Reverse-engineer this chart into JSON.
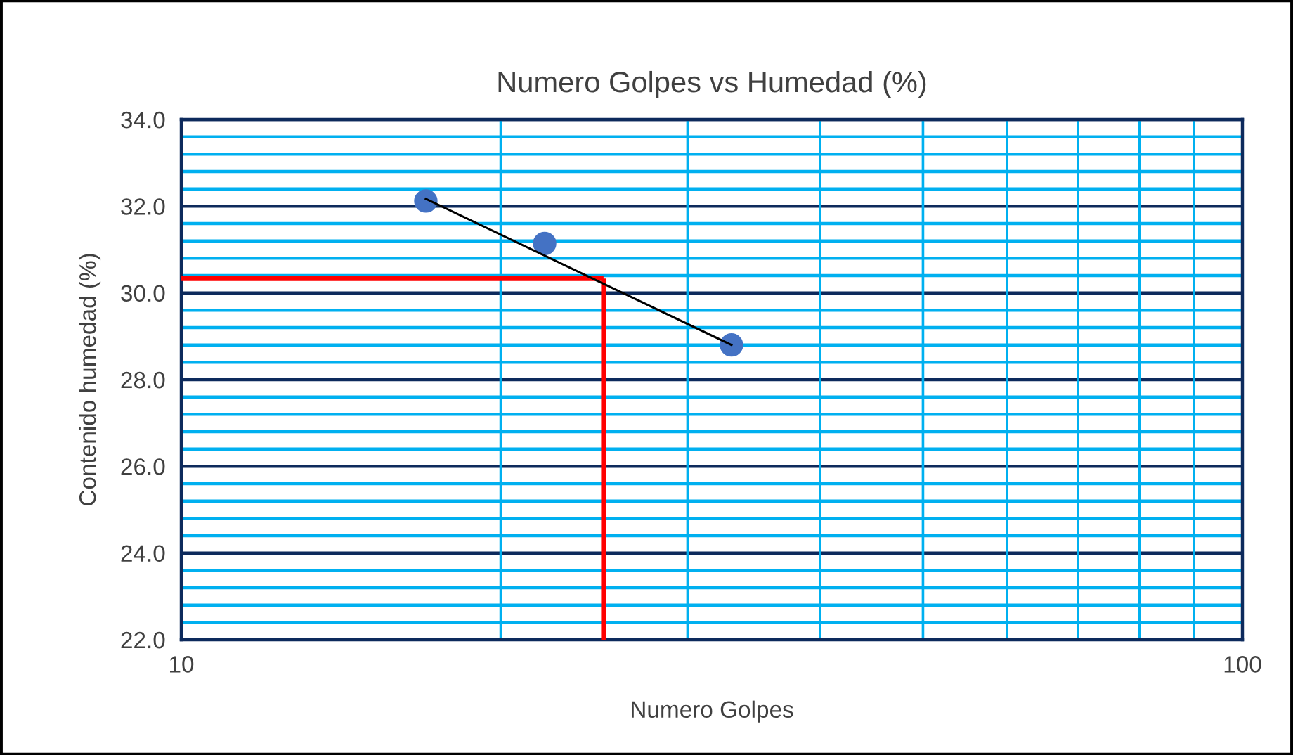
{
  "chart_data": {
    "type": "scatter",
    "title": "Numero Golpes vs Humedad (%)",
    "xlabel": "Numero Golpes",
    "ylabel": "Contenido humedad (%)",
    "log": "x",
    "series": [
      {
        "color": "#4472c4",
        "marker": "circle",
        "x": [
          17,
          22,
          33
        ],
        "values": [
          32.12,
          31.14,
          28.8
        ]
      },
      {
        "type": "line",
        "marker": "none",
        "color": "#000000",
        "x": [
          17,
          33
        ],
        "values": [
          32.17,
          28.8
        ]
      }
    ],
    "ref_lines": [
      {
        "axis": "x",
        "value": 25,
        "color": "#ff0000"
      },
      {
        "axis": "y",
        "value": 30.33,
        "color": "#ff0000"
      }
    ],
    "xlim": [
      10,
      100
    ],
    "xticks": [
      10,
      {
        "value": 20,
        "label": null
      },
      {
        "value": 30,
        "label": null
      },
      {
        "value": 40,
        "label": null
      },
      {
        "value": 50,
        "label": null
      },
      {
        "value": 60,
        "label": null
      },
      {
        "value": 70,
        "label": null
      },
      {
        "value": 80,
        "label": null
      },
      {
        "value": 90,
        "label": null
      },
      100
    ],
    "ylim": [
      22,
      34
    ],
    "yticks": [
      {
        "value": 22,
        "label": "22.0"
      },
      {
        "value": 22.4,
        "label": null
      },
      {
        "value": 22.8,
        "label": null
      },
      {
        "value": 23.2,
        "label": null
      },
      {
        "value": 23.6,
        "label": null
      },
      {
        "value": 24,
        "label": "24.0"
      },
      {
        "value": 24.4,
        "label": null
      },
      {
        "value": 24.8,
        "label": null
      },
      {
        "value": 25.2,
        "label": null
      },
      {
        "value": 25.6,
        "label": null
      },
      {
        "value": 26,
        "label": "26.0"
      },
      {
        "value": 26.4,
        "label": null
      },
      {
        "value": 26.8,
        "label": null
      },
      {
        "value": 27.2,
        "label": null
      },
      {
        "value": 27.6,
        "label": null
      },
      {
        "value": 28,
        "label": "28.0"
      },
      {
        "value": 28.4,
        "label": null
      },
      {
        "value": 28.8,
        "label": null
      },
      {
        "value": 29.2,
        "label": null
      },
      {
        "value": 29.6,
        "label": null
      },
      {
        "value": 30,
        "label": "30.0"
      },
      {
        "value": 30.4,
        "label": null
      },
      {
        "value": 30.8,
        "label": null
      },
      {
        "value": 31.2,
        "label": null
      },
      {
        "value": 31.6,
        "label": null
      },
      {
        "value": 32,
        "label": "32.0"
      },
      {
        "value": 32.4,
        "label": null
      },
      {
        "value": 32.8,
        "label": null
      },
      {
        "value": 33.2,
        "label": null
      },
      {
        "value": 33.6,
        "label": null
      },
      {
        "value": 34,
        "label": "34.0"
      }
    ],
    "grid": true
  }
}
